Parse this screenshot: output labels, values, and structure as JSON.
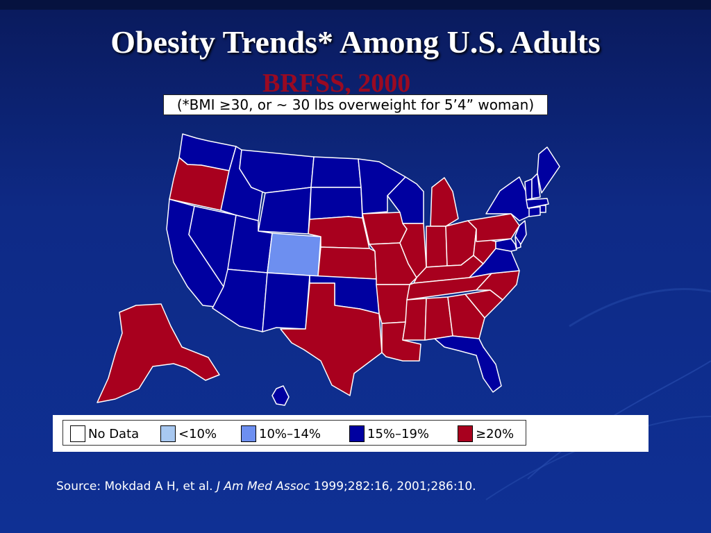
{
  "slide": {
    "title": "Obesity Trends* Among U.S. Adults",
    "subtitle": "BRFSS, 2000",
    "note": "(*BMI ≥30, or ~ 30 lbs overweight for 5’4” woman)"
  },
  "colors": {
    "background": "#0f3094",
    "no_data": "#ffffff",
    "lt10": "#a8c8f0",
    "p10_14": "#6d8ff0",
    "p15_19": "#0000a0",
    "ge20": "#a8001e",
    "title": "#ffffff",
    "subtitle": "#9a0a22"
  },
  "legend": [
    {
      "label": "No Data",
      "color_key": "no_data"
    },
    {
      "label": "<10%",
      "color_key": "lt10"
    },
    {
      "label": "10%–14%",
      "color_key": "p10_14"
    },
    {
      "label": "15%–19%",
      "color_key": "p15_19"
    },
    {
      "label": "≥20%",
      "color_key": "ge20"
    }
  ],
  "map": {
    "regions": [
      {
        "name": "Washington",
        "category": "15%–19%"
      },
      {
        "name": "Oregon",
        "category": "≥20%"
      },
      {
        "name": "California",
        "category": "15%–19%"
      },
      {
        "name": "Nevada",
        "category": "15%–19%"
      },
      {
        "name": "Idaho",
        "category": "15%–19%"
      },
      {
        "name": "Montana",
        "category": "15%–19%"
      },
      {
        "name": "Wyoming",
        "category": "15%–19%"
      },
      {
        "name": "Utah",
        "category": "15%–19%"
      },
      {
        "name": "Colorado",
        "category": "10%–14%"
      },
      {
        "name": "Arizona",
        "category": "15%–19%"
      },
      {
        "name": "New Mexico",
        "category": "15%–19%"
      },
      {
        "name": "North Dakota",
        "category": "15%–19%"
      },
      {
        "name": "South Dakota",
        "category": "15%–19%"
      },
      {
        "name": "Nebraska",
        "category": "≥20%"
      },
      {
        "name": "Kansas",
        "category": "≥20%"
      },
      {
        "name": "Oklahoma",
        "category": "15%–19%"
      },
      {
        "name": "Texas",
        "category": "≥20%"
      },
      {
        "name": "Minnesota",
        "category": "15%–19%"
      },
      {
        "name": "Iowa",
        "category": "≥20%"
      },
      {
        "name": "Missouri",
        "category": "≥20%"
      },
      {
        "name": "Arkansas",
        "category": "≥20%"
      },
      {
        "name": "Louisiana",
        "category": "≥20%"
      },
      {
        "name": "Wisconsin",
        "category": "15%–19%"
      },
      {
        "name": "Illinois",
        "category": "≥20%"
      },
      {
        "name": "Michigan",
        "category": "≥20%"
      },
      {
        "name": "Indiana",
        "category": "≥20%"
      },
      {
        "name": "Ohio",
        "category": "≥20%"
      },
      {
        "name": "Kentucky",
        "category": "≥20%"
      },
      {
        "name": "Tennessee",
        "category": "≥20%"
      },
      {
        "name": "Mississippi",
        "category": "≥20%"
      },
      {
        "name": "Alabama",
        "category": "≥20%"
      },
      {
        "name": "Georgia",
        "category": "≥20%"
      },
      {
        "name": "Florida",
        "category": "15%–19%"
      },
      {
        "name": "South Carolina",
        "category": "≥20%"
      },
      {
        "name": "North Carolina",
        "category": "≥20%"
      },
      {
        "name": "Virginia",
        "category": "15%–19%"
      },
      {
        "name": "West Virginia",
        "category": "≥20%"
      },
      {
        "name": "Pennsylvania",
        "category": "≥20%"
      },
      {
        "name": "New York",
        "category": "15%–19%"
      },
      {
        "name": "Maryland",
        "category": "15%–19%"
      },
      {
        "name": "Delaware",
        "category": "15%–19%"
      },
      {
        "name": "New Jersey",
        "category": "15%–19%"
      },
      {
        "name": "Connecticut",
        "category": "15%–19%"
      },
      {
        "name": "Rhode Island",
        "category": "15%–19%"
      },
      {
        "name": "Massachusetts",
        "category": "15%–19%"
      },
      {
        "name": "Vermont",
        "category": "15%–19%"
      },
      {
        "name": "New Hampshire",
        "category": "15%–19%"
      },
      {
        "name": "Maine",
        "category": "15%–19%"
      },
      {
        "name": "Alaska",
        "category": "≥20%"
      },
      {
        "name": "Hawaii",
        "category": "15%–19%"
      }
    ]
  },
  "source": {
    "prefix": "Source: Mokdad A H, et al. ",
    "journal": "J Am Med Assoc",
    "suffix": " 1999;282:16, 2001;286:10."
  }
}
